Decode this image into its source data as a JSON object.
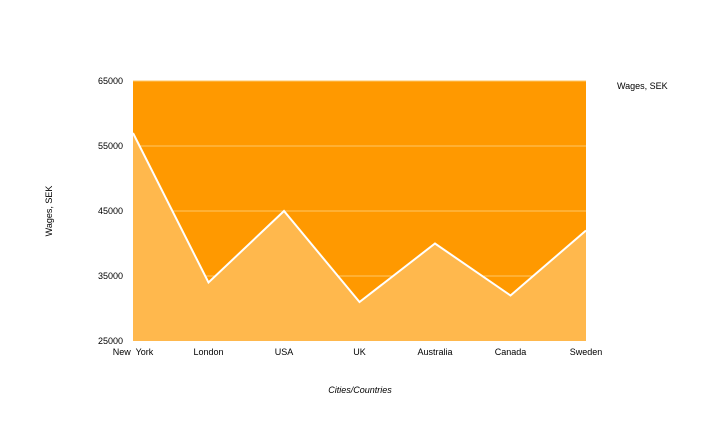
{
  "chart_data": {
    "type": "area",
    "categories": [
      "New  York",
      "London",
      "USA",
      "UK",
      "Australia",
      "Canada",
      "Sweden"
    ],
    "series": [
      {
        "name": "Wages, SEK",
        "values": [
          57000,
          34000,
          45000,
          31000,
          40000,
          32000,
          42000
        ]
      }
    ],
    "xlabel": "Cities/Countries",
    "ylabel": "Wages, SEK",
    "ylim": [
      25000,
      65000
    ],
    "yticks": [
      "65000",
      "55000",
      "45000",
      "35000",
      "25000"
    ],
    "ytick_values": [
      65000,
      55000,
      45000,
      35000,
      25000
    ],
    "grid": true,
    "legend": {
      "position": "top-right",
      "label": "Wages, SEK"
    },
    "colors": {
      "plot_background": "#ff9900",
      "area_fill": "#ffb84d",
      "line": "#ffffff",
      "grid": "#ffc766"
    }
  }
}
